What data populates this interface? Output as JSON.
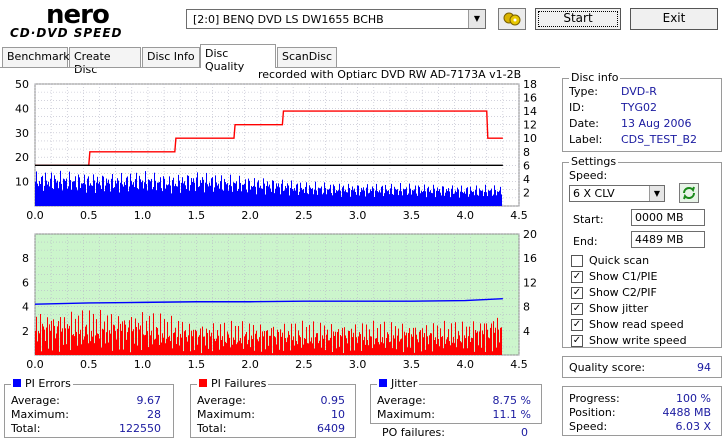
{
  "header": {
    "logo_top": "nero",
    "logo_bottom": "CD·DVD SPEED",
    "drive": "[2:0]   BENQ DVD LS DW1655 BCHB",
    "start_label": "Start",
    "exit_label": "Exit",
    "drive_icon": "drive-swap-icon"
  },
  "tabs": [
    {
      "label": "Benchmark",
      "active": false
    },
    {
      "label": "Create Disc",
      "active": false
    },
    {
      "label": "Disc Info",
      "active": false
    },
    {
      "label": "Disc Quality",
      "active": true
    },
    {
      "label": "ScanDisc",
      "active": false
    }
  ],
  "chart_data": [
    {
      "type": "area",
      "title": "recorded with Optiarc DVD RW AD-7173A   v1-2B",
      "xlim": [
        0,
        4.5
      ],
      "ylim": [
        0,
        50
      ],
      "y2lim": [
        0,
        18
      ],
      "x_ticks": [
        "0.0",
        "0.5",
        "1.0",
        "1.5",
        "2.0",
        "2.5",
        "3.0",
        "3.5",
        "4.0",
        "4.5"
      ],
      "y_ticks": [
        "10",
        "20",
        "30",
        "40",
        "50"
      ],
      "y2_ticks": [
        "2",
        "4",
        "6",
        "8",
        "10",
        "12",
        "14",
        "16",
        "18"
      ],
      "series": [
        {
          "name": "PI Errors",
          "color": "#0000ff",
          "x": [
            0.0,
            0.25,
            0.5,
            0.75,
            1.0,
            1.25,
            1.5,
            1.75,
            2.0,
            2.25,
            2.5,
            3.0,
            3.5,
            4.0,
            4.35
          ],
          "values": [
            10,
            10,
            9.5,
            9.5,
            10,
            9,
            10,
            9,
            8.5,
            8,
            7,
            6.5,
            6.5,
            6,
            6
          ]
        },
        {
          "name": "Read speed",
          "color": "#ff0000",
          "axis": "right",
          "x": [
            0.0,
            0.5,
            0.51,
            1.0,
            1.01,
            1.3,
            1.31,
            1.85,
            1.86,
            2.3,
            2.31,
            4.2,
            4.21,
            4.35
          ],
          "values": [
            6,
            6,
            8,
            8,
            8,
            8,
            10,
            10,
            12,
            12,
            14,
            14,
            10,
            10
          ]
        },
        {
          "name": "Write speed",
          "color": "#000000",
          "axis": "right",
          "x": [
            0.0,
            4.35
          ],
          "values": [
            6,
            6
          ]
        }
      ],
      "grid": true
    },
    {
      "type": "bar",
      "xlim": [
        0,
        4.5
      ],
      "ylim": [
        0,
        10
      ],
      "y2lim": [
        0,
        20
      ],
      "x_ticks": [
        "0.0",
        "0.5",
        "1.0",
        "1.5",
        "2.0",
        "2.5",
        "3.0",
        "3.5",
        "4.0",
        "4.5"
      ],
      "y_ticks": [
        "2",
        "4",
        "6",
        "8"
      ],
      "y2_ticks": [
        "4",
        "8",
        "12",
        "16",
        "20"
      ],
      "series": [
        {
          "name": "PI Failures",
          "color": "#ff0000",
          "x": [
            0.0,
            0.5,
            1.0,
            1.5,
            2.0,
            2.5,
            3.0,
            3.5,
            4.0,
            4.35
          ],
          "values": [
            2,
            2,
            2,
            1.5,
            1.5,
            1.5,
            1.5,
            1.5,
            1.5,
            2
          ]
        },
        {
          "name": "Jitter",
          "color": "#0000ff",
          "axis": "right",
          "x": [
            0.0,
            0.5,
            1.0,
            1.5,
            2.0,
            2.5,
            3.0,
            3.5,
            4.0,
            4.35
          ],
          "values": [
            8.4,
            8.6,
            8.7,
            8.8,
            8.8,
            8.9,
            8.9,
            8.9,
            9.0,
            9.3
          ]
        }
      ],
      "grid": true
    }
  ],
  "disc_info": {
    "title": "Disc info",
    "rows": [
      {
        "label": "Type:",
        "value": "DVD-R"
      },
      {
        "label": "ID:",
        "value": "TYG02"
      },
      {
        "label": "Date:",
        "value": "13 Aug 2006"
      },
      {
        "label": "Label:",
        "value": "CDS_TEST_B2"
      }
    ]
  },
  "settings": {
    "title": "Settings",
    "speed_label": "Speed:",
    "speed_value": "6 X CLV",
    "start_label": "Start:",
    "start_value": "0000 MB",
    "end_label": "End:",
    "end_value": "4489 MB",
    "checks": [
      {
        "label": "Quick scan",
        "checked": false
      },
      {
        "label": "Show C1/PIE",
        "checked": true
      },
      {
        "label": "Show C2/PIF",
        "checked": true
      },
      {
        "label": "Show jitter",
        "checked": true
      },
      {
        "label": "Show read speed",
        "checked": true
      },
      {
        "label": "Show write speed",
        "checked": true
      }
    ]
  },
  "quality": {
    "label": "Quality score:",
    "value": "94"
  },
  "progress": {
    "rows": [
      {
        "label": "Progress:",
        "value": "100 %"
      },
      {
        "label": "Position:",
        "value": "4488 MB"
      },
      {
        "label": "Speed:",
        "value": "6.03 X"
      }
    ]
  },
  "pi_errors": {
    "title": "PI Errors",
    "color": "#0000ff",
    "rows": [
      {
        "label": "Average:",
        "value": "9.67"
      },
      {
        "label": "Maximum:",
        "value": "28"
      },
      {
        "label": "Total:",
        "value": "122550"
      }
    ]
  },
  "pi_failures": {
    "title": "PI Failures",
    "color": "#ff0000",
    "rows": [
      {
        "label": "Average:",
        "value": "0.95"
      },
      {
        "label": "Maximum:",
        "value": "10"
      },
      {
        "label": "Total:",
        "value": "6409"
      }
    ]
  },
  "jitter": {
    "title": "Jitter",
    "color": "#0000ff",
    "rows": [
      {
        "label": "Average:",
        "value": "8.75 %"
      },
      {
        "label": "Maximum:",
        "value": "11.1 %"
      }
    ],
    "po_label": "PO failures:",
    "po_value": "0"
  }
}
